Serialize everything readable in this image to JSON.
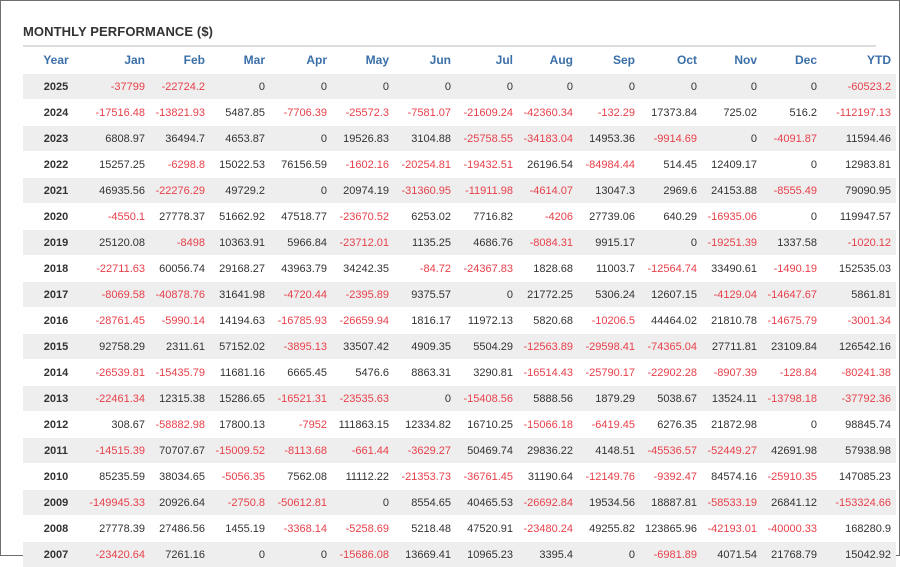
{
  "title": "MONTHLY PERFORMANCE ($)",
  "colors": {
    "header_text": "#3b6fa8",
    "negative": "#e8404a",
    "positive": "#333333",
    "stripe": "#eeeeee"
  },
  "columns": [
    "Year",
    "Jan",
    "Feb",
    "Mar",
    "Apr",
    "May",
    "Jun",
    "Jul",
    "Aug",
    "Sep",
    "Oct",
    "Nov",
    "Dec",
    "YTD"
  ],
  "rows": [
    [
      "2025",
      "-37799",
      "-22724.2",
      "0",
      "0",
      "0",
      "0",
      "0",
      "0",
      "0",
      "0",
      "0",
      "0",
      "-60523.2"
    ],
    [
      "2024",
      "-17516.48",
      "-13821.93",
      "5487.85",
      "-7706.39",
      "-25572.3",
      "-7581.07",
      "-21609.24",
      "-42360.34",
      "-132.29",
      "17373.84",
      "725.02",
      "516.2",
      "-112197.13"
    ],
    [
      "2023",
      "6808.97",
      "36494.7",
      "4653.87",
      "0",
      "19526.83",
      "3104.88",
      "-25758.55",
      "-34183.04",
      "14953.36",
      "-9914.69",
      "0",
      "-4091.87",
      "11594.46"
    ],
    [
      "2022",
      "15257.25",
      "-6298.8",
      "15022.53",
      "76156.59",
      "-1602.16",
      "-20254.81",
      "-19432.51",
      "26196.54",
      "-84984.44",
      "514.45",
      "12409.17",
      "0",
      "12983.81"
    ],
    [
      "2021",
      "46935.56",
      "-22276.29",
      "49729.2",
      "0",
      "20974.19",
      "-31360.95",
      "-11911.98",
      "-4614.07",
      "13047.3",
      "2969.6",
      "24153.88",
      "-8555.49",
      "79090.95"
    ],
    [
      "2020",
      "-4550.1",
      "27778.37",
      "51662.92",
      "47518.77",
      "-23670.52",
      "6253.02",
      "7716.82",
      "-4206",
      "27739.06",
      "640.29",
      "-16935.06",
      "0",
      "119947.57"
    ],
    [
      "2019",
      "25120.08",
      "-8498",
      "10363.91",
      "5966.84",
      "-23712.01",
      "1135.25",
      "4686.76",
      "-8084.31",
      "9915.17",
      "0",
      "-19251.39",
      "1337.58",
      "-1020.12"
    ],
    [
      "2018",
      "-22711.63",
      "60056.74",
      "29168.27",
      "43963.79",
      "34242.35",
      "-84.72",
      "-24367.83",
      "1828.68",
      "11003.7",
      "-12564.74",
      "33490.61",
      "-1490.19",
      "152535.03"
    ],
    [
      "2017",
      "-8069.58",
      "-40878.76",
      "31641.98",
      "-4720.44",
      "-2395.89",
      "9375.57",
      "0",
      "21772.25",
      "5306.24",
      "12607.15",
      "-4129.04",
      "-14647.67",
      "5861.81"
    ],
    [
      "2016",
      "-28761.45",
      "-5990.14",
      "14194.63",
      "-16785.93",
      "-26659.94",
      "1816.17",
      "11972.13",
      "5820.68",
      "-10206.5",
      "44464.02",
      "21810.78",
      "-14675.79",
      "-3001.34"
    ],
    [
      "2015",
      "92758.29",
      "2311.61",
      "57152.02",
      "-3895.13",
      "33507.42",
      "4909.35",
      "5504.29",
      "-12563.89",
      "-29598.41",
      "-74365.04",
      "27711.81",
      "23109.84",
      "126542.16"
    ],
    [
      "2014",
      "-26539.81",
      "-15435.79",
      "11681.16",
      "6665.45",
      "5476.6",
      "8863.31",
      "3290.81",
      "-16514.43",
      "-25790.17",
      "-22902.28",
      "-8907.39",
      "-128.84",
      "-80241.38"
    ],
    [
      "2013",
      "-22461.34",
      "12315.38",
      "15286.65",
      "-16521.31",
      "-23535.63",
      "0",
      "-15408.56",
      "5888.56",
      "1879.29",
      "5038.67",
      "13524.11",
      "-13798.18",
      "-37792.36"
    ],
    [
      "2012",
      "308.67",
      "-58882.98",
      "17800.13",
      "-7952",
      "111863.15",
      "12334.82",
      "16710.25",
      "-15066.18",
      "-6419.45",
      "6276.35",
      "21872.98",
      "0",
      "98845.74"
    ],
    [
      "2011",
      "-14515.39",
      "70707.67",
      "-15009.52",
      "-8113.68",
      "-661.44",
      "-3629.27",
      "50469.74",
      "29836.22",
      "4148.51",
      "-45536.57",
      "-52449.27",
      "42691.98",
      "57938.98"
    ],
    [
      "2010",
      "85235.59",
      "38034.65",
      "-5056.35",
      "7562.08",
      "11112.22",
      "-21353.73",
      "-36761.45",
      "31190.64",
      "-12149.76",
      "-9392.47",
      "84574.16",
      "-25910.35",
      "147085.23"
    ],
    [
      "2009",
      "-149945.33",
      "20926.64",
      "-2750.8",
      "-50612.81",
      "0",
      "8554.65",
      "40465.53",
      "-26692.84",
      "19534.56",
      "18887.81",
      "-58533.19",
      "26841.12",
      "-153324.66"
    ],
    [
      "2008",
      "27778.39",
      "27486.56",
      "1455.19",
      "-3368.14",
      "-5258.69",
      "5218.48",
      "47520.91",
      "-23480.24",
      "49255.82",
      "123865.96",
      "-42193.01",
      "-40000.33",
      "168280.9"
    ],
    [
      "2007",
      "-23420.64",
      "7261.16",
      "0",
      "0",
      "-15686.08",
      "13669.41",
      "10965.23",
      "3395.4",
      "0",
      "-6981.89",
      "4071.54",
      "21768.79",
      "15042.92"
    ]
  ]
}
